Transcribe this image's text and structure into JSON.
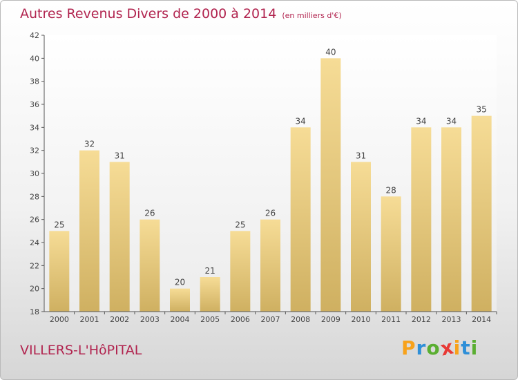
{
  "chart_data": {
    "type": "bar",
    "title": "Autres Revenus Divers de 2000 à 2014",
    "unit_note": "(en milliers d'€)",
    "categories": [
      "2000",
      "2001",
      "2002",
      "2003",
      "2004",
      "2005",
      "2006",
      "2007",
      "2008",
      "2009",
      "2010",
      "2011",
      "2012",
      "2013",
      "2014"
    ],
    "values": [
      25,
      32,
      31,
      26,
      20,
      21,
      25,
      26,
      34,
      40,
      31,
      28,
      34,
      34,
      35
    ],
    "ylim": [
      18,
      42
    ],
    "yticks": [
      18,
      20,
      22,
      24,
      26,
      28,
      30,
      32,
      34,
      36,
      38,
      40,
      42
    ],
    "grid": false,
    "bar_color": "#e8cf86"
  },
  "footer": {
    "location": "VILLERS-L'HôPITAL",
    "brand_letters": [
      "P",
      "r",
      "o",
      "x",
      "i",
      "t",
      "i"
    ],
    "brand_colors": [
      "#f7a21b",
      "#2e8fd8",
      "#5aae31",
      "#e83a36",
      "#f7a21b",
      "#2e8fd8",
      "#5aae31"
    ]
  }
}
